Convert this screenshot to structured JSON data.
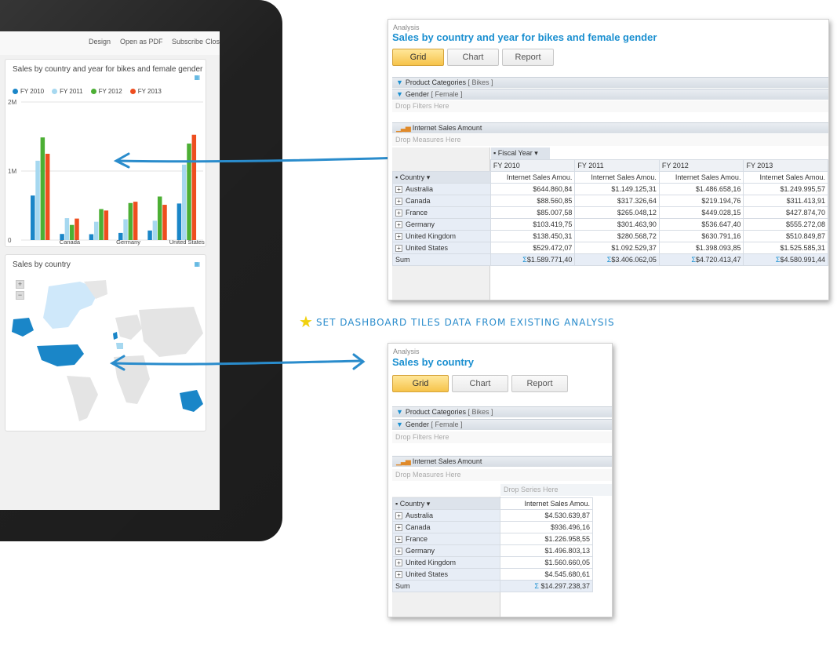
{
  "tablet": {
    "topbar": [
      "Design",
      "Open as PDF",
      "Subscribe",
      "Close"
    ],
    "tile1_title": "Sales by country and year for bikes and female gender",
    "tile2_title": "Sales by country",
    "zoom_in": "+",
    "zoom_out": "−"
  },
  "chart_data": {
    "type": "bar",
    "title": "Sales by country and year for bikes and female gender",
    "categories": [
      "Australia",
      "Canada",
      "France",
      "Germany",
      "United Kingdom",
      "United States"
    ],
    "series": [
      {
        "name": "FY 2010",
        "color": "#1a86c8",
        "values": [
          644860.84,
          88560.85,
          85007.58,
          103419.75,
          138450.31,
          529472.07
        ]
      },
      {
        "name": "FY 2011",
        "color": "#a6d8f0",
        "values": [
          1149125.31,
          317326.64,
          265048.12,
          301463.9,
          280568.72,
          1092529.37
        ]
      },
      {
        "name": "FY 2012",
        "color": "#4caf34",
        "values": [
          1486658.16,
          219194.76,
          449028.15,
          536647.4,
          630791.16,
          1398093.85
        ]
      },
      {
        "name": "FY 2013",
        "color": "#ee4e1f",
        "values": [
          1249995.57,
          311413.91,
          427874.7,
          555272.08,
          510849.87,
          1525585.31
        ]
      }
    ],
    "yticks": [
      "0",
      "1M",
      "2M"
    ],
    "ylim": [
      0,
      2000000
    ],
    "legend": "top-left"
  },
  "map": {
    "regions": [
      "North America",
      "Europe",
      "Australia"
    ]
  },
  "win1": {
    "label": "Analysis",
    "title": "Sales by country and year for bikes and female gender",
    "tabs": [
      "Grid",
      "Chart",
      "Report"
    ],
    "filter1": "Product Categories",
    "filter1_value": "[ Bikes ]",
    "filter2": "Gender",
    "filter2_value": "[ Female ]",
    "drop_filters": "Drop Filters Here",
    "measure": "Internet Sales Amount",
    "drop_measures": "Drop Measures Here",
    "col_dim": "Fiscal Year",
    "row_dim": "Country",
    "years": [
      "FY 2010",
      "FY 2011",
      "FY 2012",
      "FY 2013"
    ],
    "measure_col": "Internet Sales Amou.",
    "rows": [
      {
        "country": "Australia",
        "vals": [
          "$644.860,84",
          "$1.149.125,31",
          "$1.486.658,16",
          "$1.249.995,57"
        ]
      },
      {
        "country": "Canada",
        "vals": [
          "$88.560,85",
          "$317.326,64",
          "$219.194,76",
          "$311.413,91"
        ]
      },
      {
        "country": "France",
        "vals": [
          "$85.007,58",
          "$265.048,12",
          "$449.028,15",
          "$427.874,70"
        ]
      },
      {
        "country": "Germany",
        "vals": [
          "$103.419,75",
          "$301.463,90",
          "$536.647,40",
          "$555.272,08"
        ]
      },
      {
        "country": "United Kingdom",
        "vals": [
          "$138.450,31",
          "$280.568,72",
          "$630.791,16",
          "$510.849,87"
        ]
      },
      {
        "country": "United States",
        "vals": [
          "$529.472,07",
          "$1.092.529,37",
          "$1.398.093,85",
          "$1.525.585,31"
        ]
      }
    ],
    "sum_label": "Sum",
    "sums": [
      "$1.589.771,40",
      "$3.406.062,05",
      "$4.720.413,47",
      "$4.580.991,44"
    ]
  },
  "win2": {
    "label": "Analysis",
    "title": "Sales by country",
    "tabs": [
      "Grid",
      "Chart",
      "Report"
    ],
    "filter1": "Product Categories",
    "filter1_value": "[ Bikes ]",
    "filter2": "Gender",
    "filter2_value": "[ Female ]",
    "drop_filters": "Drop Filters Here",
    "measure": "Internet Sales Amount",
    "drop_measures": "Drop Measures Here",
    "drop_series": "Drop Series Here",
    "row_dim": "Country",
    "measure_col": "Internet Sales Amou.",
    "rows": [
      {
        "country": "Australia",
        "val": "$4.530.639,87"
      },
      {
        "country": "Canada",
        "val": "$936.496,16"
      },
      {
        "country": "France",
        "val": "$1.226.958,55"
      },
      {
        "country": "Germany",
        "val": "$1.496.803,13"
      },
      {
        "country": "United Kingdom",
        "val": "$1.560.660,05"
      },
      {
        "country": "United States",
        "val": "$4.545.680,61"
      }
    ],
    "sum_label": "Sum",
    "sum": "$14.297.238,37"
  },
  "annotation": "SET DASHBOARD TILES DATA FROM EXISTING ANALYSIS",
  "colors": {
    "accent": "#1a8fd0",
    "tab_active": "#f6c34a",
    "annotation": "#2a8ccc"
  }
}
